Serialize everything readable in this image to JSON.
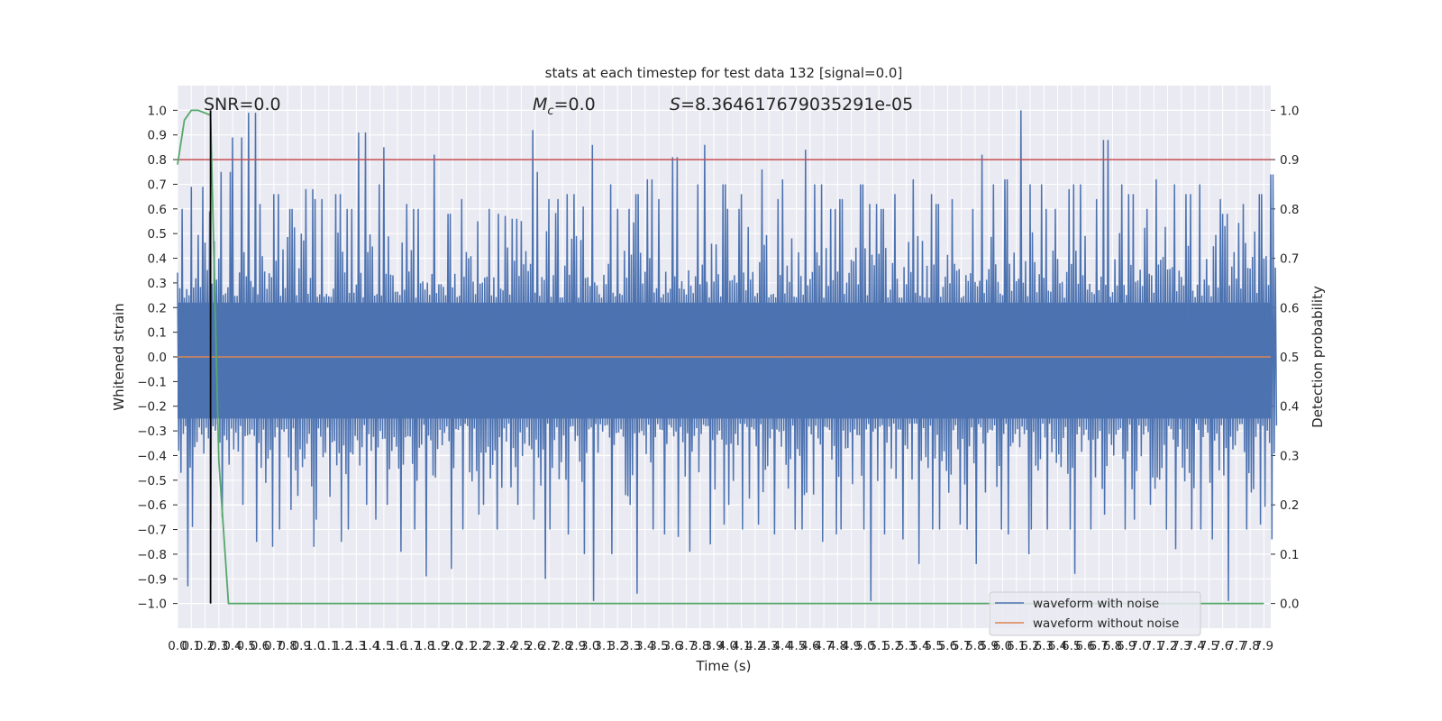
{
  "chart_data": {
    "type": "line",
    "title": "stats at each timestep for test data 132 [signal=0.0]",
    "xlabel": "Time (s)",
    "ylabel": "Whitened strain",
    "ylabel_right": "Detection probability",
    "xlim": [
      0,
      7.95
    ],
    "ylim": [
      -1.1,
      1.1
    ],
    "ylim_right": [
      -0.05,
      1.05
    ],
    "grid": true,
    "legend_position": "lower-right",
    "annotations": {
      "snr": "SNR=0.0",
      "mc_symbol": "M",
      "mc_sub": "c",
      "mc_value": "=0.0",
      "s_symbol": "S",
      "s_value": "=8.364617679035291e-05"
    },
    "x_ticks": [
      "0.0",
      "0.1",
      "0.2",
      "0.3",
      "0.4",
      "0.5",
      "0.6",
      "0.7",
      "0.8",
      "0.9",
      "1.0",
      "1.1",
      "1.2",
      "1.3",
      "1.4",
      "1.5",
      "1.6",
      "1.7",
      "1.8",
      "1.9",
      "2.0",
      "2.1",
      "2.2",
      "2.3",
      "2.4",
      "2.5",
      "2.6",
      "2.7",
      "2.8",
      "2.9",
      "3.0",
      "3.1",
      "3.2",
      "3.3",
      "3.4",
      "3.5",
      "3.6",
      "3.7",
      "3.8",
      "3.9",
      "4.0",
      "4.1",
      "4.2",
      "4.3",
      "4.4",
      "4.5",
      "4.6",
      "4.7",
      "4.8",
      "4.9",
      "5.0",
      "5.1",
      "5.2",
      "5.3",
      "5.4",
      "5.5",
      "5.6",
      "5.7",
      "5.8",
      "5.9",
      "6.0",
      "6.1",
      "6.2",
      "6.3",
      "6.4",
      "6.5",
      "6.6",
      "6.7",
      "6.8",
      "6.9",
      "7.0",
      "7.1",
      "7.2",
      "7.3",
      "7.4",
      "7.5",
      "7.6",
      "7.7",
      "7.8",
      "7.9"
    ],
    "y_ticks": [
      "1.0",
      "0.9",
      "0.8",
      "0.7",
      "0.6",
      "0.5",
      "0.4",
      "0.3",
      "0.2",
      "0.1",
      "0.0",
      "−0.1",
      "−0.2",
      "−0.3",
      "−0.4",
      "−0.5",
      "−0.6",
      "−0.7",
      "−0.8",
      "−0.9",
      "−1.0"
    ],
    "y_ticks_right": [
      "1.0",
      "0.9",
      "0.8",
      "0.7",
      "0.6",
      "0.5",
      "0.4",
      "0.3",
      "0.2",
      "0.1",
      "0.0"
    ],
    "series": [
      {
        "name": "waveform with noise",
        "color": "#4C72B0",
        "bin_width_s": 0.1,
        "bin_max": [
          0.6,
          0.69,
          0.59,
          0.75,
          0.89,
          0.99,
          0.62,
          0.66,
          0.6,
          0.68,
          0.64,
          0.66,
          0.6,
          0.91,
          0.7,
          0.85,
          0.62,
          0.6,
          0.82,
          0.58,
          0.64,
          0.55,
          0.6,
          0.58,
          0.56,
          0.92,
          0.75,
          0.64,
          0.66,
          0.61,
          0.86,
          0.7,
          0.6,
          0.66,
          0.72,
          0.64,
          0.81,
          0.7,
          0.86,
          0.7,
          0.6,
          0.66,
          0.76,
          0.64,
          0.72,
          0.84,
          0.7,
          0.6,
          0.64,
          0.7,
          0.62,
          0.6,
          0.66,
          0.72,
          0.66,
          0.62,
          0.64,
          0.6,
          0.82,
          0.7,
          0.72,
          1.0,
          0.7,
          0.6,
          0.68,
          0.7,
          0.64,
          0.88,
          0.7,
          0.66,
          0.6,
          0.72,
          0.7,
          0.66,
          0.7,
          0.64,
          0.58,
          0.62,
          0.66,
          0.74
        ],
        "bin_min": [
          -0.93,
          -0.69,
          -0.68,
          -0.65,
          -0.6,
          -0.75,
          -0.77,
          -0.7,
          -0.62,
          -0.77,
          -0.66,
          -0.75,
          -0.7,
          -0.6,
          -0.66,
          -0.6,
          -0.79,
          -0.7,
          -0.89,
          -0.86,
          -0.7,
          -0.64,
          -0.6,
          -0.7,
          -0.6,
          -0.66,
          -0.9,
          -0.7,
          -0.72,
          -0.8,
          -0.99,
          -0.8,
          -0.6,
          -0.96,
          -0.7,
          -0.72,
          -0.73,
          -0.79,
          -0.76,
          -0.68,
          -0.6,
          -0.7,
          -0.68,
          -0.72,
          -0.7,
          -0.7,
          -0.75,
          -0.72,
          -0.7,
          -0.7,
          -0.99,
          -0.72,
          -0.74,
          -0.84,
          -0.7,
          -0.7,
          -0.68,
          -0.7,
          -0.84,
          -0.7,
          -0.72,
          -0.8,
          -0.7,
          -0.7,
          -0.7,
          -0.88,
          -0.7,
          -0.64,
          -0.7,
          -0.66,
          -0.6,
          -0.7,
          -0.78,
          -0.7,
          -0.7,
          -0.74,
          -0.99,
          -0.7,
          -0.68,
          -0.74
        ]
      },
      {
        "name": "waveform without noise",
        "color": "#DD8452",
        "x": [
          0,
          7.95
        ],
        "y": [
          0,
          0
        ]
      },
      {
        "color": "#55A868",
        "axis": "right",
        "x": [
          0,
          0.05,
          0.1,
          0.15,
          0.24,
          0.3,
          0.37,
          7.9
        ],
        "y": [
          0.89,
          0.98,
          1.0,
          1.0,
          0.99,
          0.29,
          0.0,
          0.0
        ]
      }
    ],
    "threshold": {
      "value_right": 0.9,
      "color": "#C44E52"
    },
    "marker_time": {
      "x": 0.24,
      "color": "#000000"
    }
  }
}
